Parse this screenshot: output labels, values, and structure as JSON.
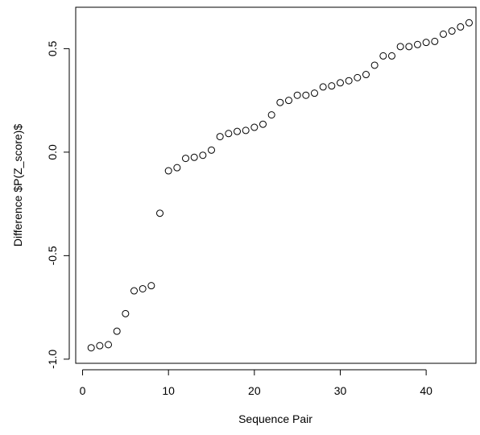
{
  "chart_data": {
    "type": "scatter",
    "title": "",
    "xlabel": "Sequence Pair",
    "ylabel": "Difference $P(Z_score)$",
    "xlim": [
      -0.8,
      45.8
    ],
    "ylim": [
      -1.02,
      0.7
    ],
    "xticks": [
      0,
      10,
      20,
      30,
      40
    ],
    "yticks": [
      -1.0,
      -0.5,
      0.0,
      0.5
    ],
    "xtick_labels": [
      "0",
      "10",
      "20",
      "30",
      "40"
    ],
    "ytick_labels": [
      "-1.0",
      "-0.5",
      "0.0",
      "0.5"
    ],
    "grid": false,
    "marker": "open-circle",
    "x": [
      1,
      2,
      3,
      4,
      5,
      6,
      7,
      8,
      9,
      10,
      11,
      12,
      13,
      14,
      15,
      16,
      17,
      18,
      19,
      20,
      21,
      22,
      23,
      24,
      25,
      26,
      27,
      28,
      29,
      30,
      31,
      32,
      33,
      34,
      35,
      36,
      37,
      38,
      39,
      40,
      41,
      42,
      43,
      44,
      45
    ],
    "y": [
      -0.945,
      -0.935,
      -0.93,
      -0.865,
      -0.78,
      -0.67,
      -0.66,
      -0.645,
      -0.295,
      -0.09,
      -0.075,
      -0.03,
      -0.025,
      -0.015,
      0.01,
      0.075,
      0.09,
      0.1,
      0.105,
      0.12,
      0.135,
      0.18,
      0.24,
      0.25,
      0.275,
      0.275,
      0.285,
      0.315,
      0.32,
      0.335,
      0.345,
      0.36,
      0.375,
      0.42,
      0.465,
      0.465,
      0.51,
      0.51,
      0.52,
      0.53,
      0.535,
      0.57,
      0.585,
      0.605,
      0.625
    ]
  }
}
